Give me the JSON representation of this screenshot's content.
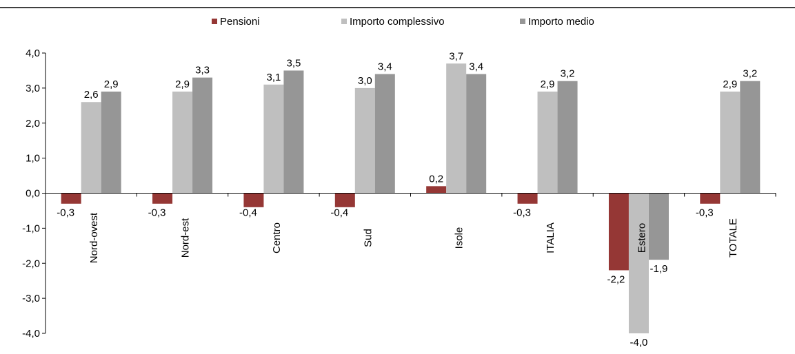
{
  "chart_data": {
    "type": "bar",
    "categories": [
      "Nord-ovest",
      "Nord-est",
      "Centro",
      "Sud",
      "Isole",
      "ITALIA",
      "Estero",
      "TOTALE"
    ],
    "series": [
      {
        "name": "Pensioni",
        "color": "#953735",
        "values": [
          -0.3,
          -0.3,
          -0.4,
          -0.4,
          0.2,
          -0.3,
          -2.2,
          -0.3
        ],
        "labels": [
          "-0,3",
          "-0,3",
          "-0,4",
          "-0,4",
          "0,2",
          "-0,3",
          "-2,2",
          "-0,3"
        ]
      },
      {
        "name": "Importo complessivo",
        "color": "#bfbfbf",
        "values": [
          2.6,
          2.9,
          3.1,
          3.0,
          3.7,
          2.9,
          -4.0,
          2.9
        ],
        "labels": [
          "2,6",
          "2,9",
          "3,1",
          "3,0",
          "3,7",
          "2,9",
          "-4,0",
          "2,9"
        ]
      },
      {
        "name": "Importo medio",
        "color": "#969696",
        "values": [
          2.9,
          3.3,
          3.5,
          3.4,
          3.4,
          3.2,
          -1.9,
          3.2
        ],
        "labels": [
          "2,9",
          "3,3",
          "3,5",
          "3,4",
          "3,4",
          "3,2",
          "-1,9",
          "3,2"
        ]
      }
    ],
    "ylim": [
      -4.0,
      4.0
    ],
    "yticks": [
      4.0,
      3.0,
      2.0,
      1.0,
      0.0,
      -1.0,
      -2.0,
      -3.0,
      -4.0
    ],
    "ytick_labels": [
      "4,0",
      "3,0",
      "2,0",
      "1,0",
      "0,0",
      "-1,0",
      "-2,0",
      "-3,0",
      "-4,0"
    ],
    "legend_position": "top",
    "grid": false
  }
}
